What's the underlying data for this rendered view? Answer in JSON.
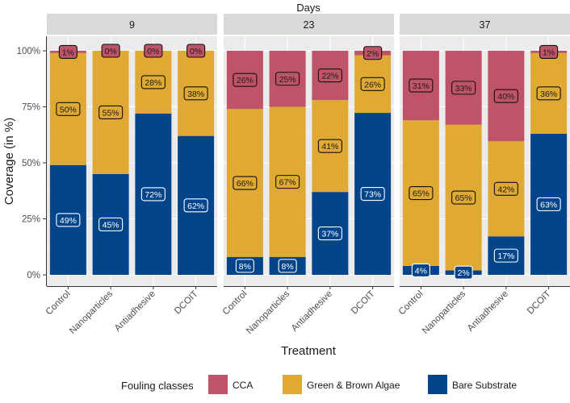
{
  "chart_data": {
    "type": "bar",
    "stacked": true,
    "facet_title": "Days",
    "xlabel": "Treatment",
    "ylabel": "Coverage (in %)",
    "ylim": [
      0,
      100
    ],
    "y_ticks": [
      "0%",
      "25%",
      "50%",
      "75%",
      "100%"
    ],
    "y_tick_values": [
      0,
      25,
      50,
      75,
      100
    ],
    "categories": [
      "Control",
      "Nanoparticles",
      "Antiadhesive",
      "DCOIT"
    ],
    "legend": {
      "title": "Fouling classes",
      "position": "bottom"
    },
    "series_order": [
      "Bare Substrate",
      "Green & Brown Algae",
      "CCA"
    ],
    "colors": {
      "CCA": "#bf5468",
      "Green & Brown Algae": "#dfa934",
      "Bare Substrate": "#03448b"
    },
    "legend_entries": [
      "CCA",
      "Green & Brown Algae",
      "Bare Substrate"
    ],
    "panels": [
      {
        "day": "9",
        "series": [
          {
            "name": "Bare Substrate",
            "values": [
              49,
              45,
              72,
              62
            ]
          },
          {
            "name": "Green & Brown Algae",
            "values": [
              50,
              55,
              28,
              38
            ]
          },
          {
            "name": "CCA",
            "values": [
              1,
              0,
              0,
              0
            ]
          }
        ]
      },
      {
        "day": "23",
        "series": [
          {
            "name": "Bare Substrate",
            "values": [
              8,
              8,
              37,
              73
            ]
          },
          {
            "name": "Green & Brown Algae",
            "values": [
              66,
              67,
              41,
              26
            ]
          },
          {
            "name": "CCA",
            "values": [
              26,
              25,
              22,
              2
            ]
          }
        ]
      },
      {
        "day": "37",
        "series": [
          {
            "name": "Bare Substrate",
            "values": [
              4,
              2,
              17,
              63
            ]
          },
          {
            "name": "Green & Brown Algae",
            "values": [
              65,
              65,
              42,
              36
            ]
          },
          {
            "name": "CCA",
            "values": [
              31,
              33,
              40,
              1
            ]
          }
        ]
      }
    ]
  }
}
